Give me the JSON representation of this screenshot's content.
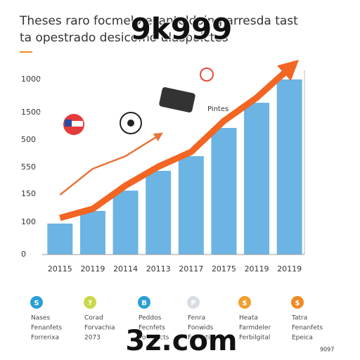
{
  "chart_data": {
    "type": "bar",
    "title": "Theses raro focmelo esanteldoing arresda tast",
    "subtitle": "ta opestrado desicomo ulaspoictes",
    "watermarks": [
      "9k999",
      "3z.com"
    ],
    "annotation": "Pintes",
    "footer": "9097",
    "categories": [
      "20115",
      "20119",
      "20114",
      "20113",
      "20117",
      "20175",
      "20119",
      "20119"
    ],
    "series": [
      {
        "type": "bar",
        "color": "#6cb4e4",
        "values": [
          177,
          249,
          365,
          478,
          562,
          723,
          867,
          1000
        ]
      },
      {
        "type": "line",
        "color": "#f26522",
        "values": [
          209,
          261,
          394,
          502,
          586,
          763,
          896,
          1064
        ]
      },
      {
        "type": "line",
        "color": "#e8743b",
        "values": [
          341,
          490,
          562,
          679,
          null,
          null,
          null,
          null
        ]
      }
    ],
    "ylim": [
      0,
      1000
    ],
    "yticks": [
      {
        "value": 1000,
        "label": "1000"
      },
      {
        "value": 811,
        "label": "1500"
      },
      {
        "value": 655,
        "label": "500"
      },
      {
        "value": 498,
        "label": "550"
      },
      {
        "value": 345,
        "label": "150"
      },
      {
        "value": 185,
        "label": "100"
      },
      0
    ],
    "legend_items": [
      {
        "icon": "S",
        "color": "#2a9fd6",
        "lines": [
          "Nases",
          "Fenanfets",
          "Forrerixa"
        ]
      },
      {
        "icon": "?",
        "color": "#c8d84a",
        "lines": [
          "Corad",
          "Forvachia",
          "2073"
        ]
      },
      {
        "icon": "B",
        "color": "#2a9fd6",
        "lines": [
          "Peddos",
          "Fecnfets",
          "Forresicts"
        ]
      },
      {
        "icon": "P",
        "color": "#d8dde3",
        "lines": [
          "Fenra",
          "Fonwids",
          "Foriettia"
        ]
      },
      {
        "icon": "$",
        "color": "#f0a030",
        "lines": [
          "Heata",
          "Farmdeler",
          "Ferbilgital"
        ]
      },
      {
        "icon": "$",
        "color": "#f08a24",
        "lines": [
          "Tatra",
          "Fenanfets",
          "Epeica"
        ]
      }
    ]
  }
}
